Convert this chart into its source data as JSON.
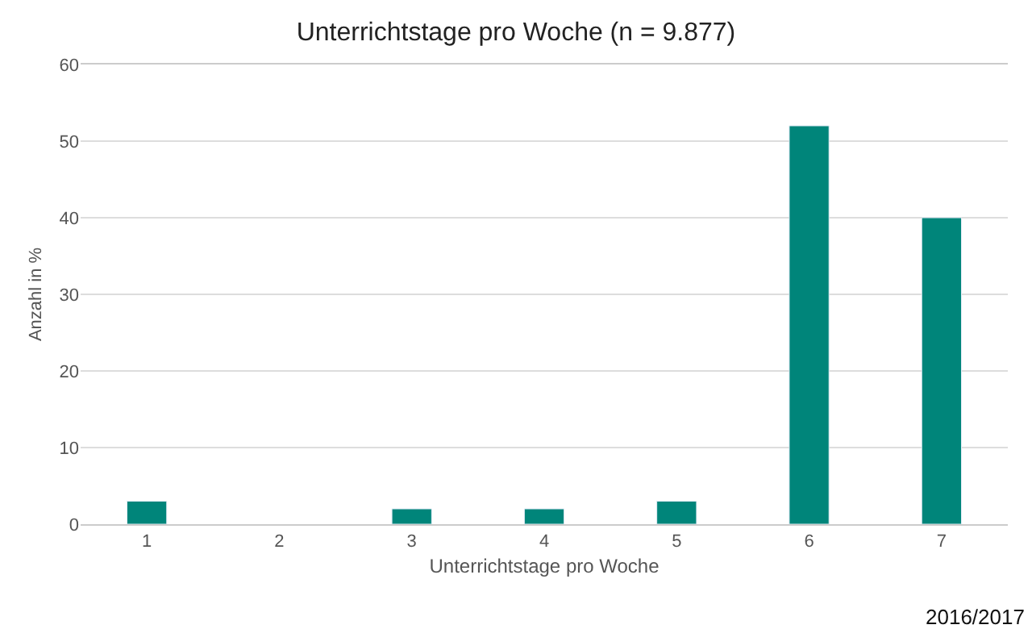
{
  "chart_data": {
    "type": "bar",
    "title": "Unterrichtstage pro Woche (n = 9.877)",
    "xlabel": "Unterrichtstage pro Woche",
    "ylabel": "Anzahl in %",
    "categories": [
      "1",
      "2",
      "3",
      "4",
      "5",
      "6",
      "7"
    ],
    "values": [
      3,
      null,
      2,
      2,
      3,
      52,
      40
    ],
    "color": "#00857a",
    "ylim": [
      0,
      60
    ],
    "yticks": [
      0,
      10,
      20,
      30,
      40,
      50,
      60
    ],
    "grid": "y",
    "annotations": [
      "2016/2017"
    ]
  }
}
